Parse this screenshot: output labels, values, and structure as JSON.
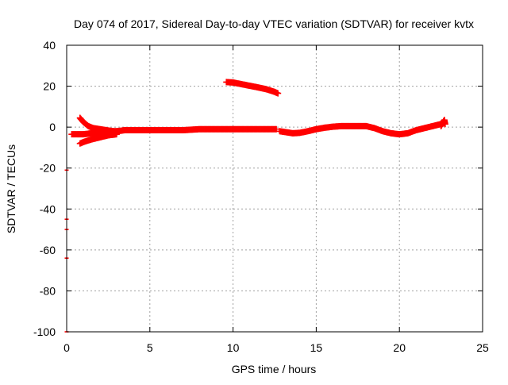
{
  "chart_data": {
    "type": "scatter",
    "title": "Day 074 of 2017, Sidereal Day-to-day VTEC variation (SDTVAR) for receiver kvtx",
    "xlabel": "GPS time / hours",
    "ylabel": "SDTVAR / TECUs",
    "xlim": [
      0,
      25
    ],
    "ylim": [
      -100,
      40
    ],
    "xticks": [
      "0",
      "5",
      "10",
      "15",
      "20",
      "25"
    ],
    "yticks": [
      "-100",
      "-80",
      "-60",
      "-40",
      "-20",
      "0",
      "20",
      "40"
    ],
    "grid": true,
    "marker": "+",
    "series_color": "#ff0000",
    "segments": [
      {
        "x": [
          0.3,
          0.6,
          1.0,
          1.5,
          2.0,
          2.5,
          3.0,
          3.5,
          4.0,
          5.0,
          6.0,
          7.0,
          8.0,
          9.0,
          10.0,
          11.0,
          12.0,
          12.6
        ],
        "y": [
          -3.5,
          -3.5,
          -3.5,
          -3.0,
          -2.5,
          -2.0,
          -2.0,
          -1.5,
          -1.5,
          -1.5,
          -1.5,
          -1.5,
          -1.0,
          -1.0,
          -1.0,
          -1.0,
          -1.0,
          -1.0
        ]
      },
      {
        "x": [
          0.8,
          1.0,
          1.3,
          1.6,
          2.0,
          2.4,
          2.8
        ],
        "y": [
          4.5,
          2.5,
          0.5,
          -0.5,
          -1.0,
          -1.5,
          -2.0
        ]
      },
      {
        "x": [
          0.8,
          1.1,
          1.5,
          2.0,
          2.5,
          3.0
        ],
        "y": [
          -8.0,
          -7.0,
          -6.0,
          -5.0,
          -4.0,
          -3.5
        ]
      },
      {
        "x": [
          9.6,
          10.0,
          10.5,
          11.0,
          11.5,
          12.0,
          12.5,
          12.7
        ],
        "y": [
          22.0,
          21.8,
          21.0,
          20.2,
          19.4,
          18.5,
          17.2,
          16.5
        ]
      },
      {
        "x": [
          12.8,
          13.2,
          13.6,
          14.0,
          14.5,
          15.0,
          15.5,
          16.0,
          16.5,
          17.0,
          17.5,
          18.0,
          18.5,
          19.0,
          19.5,
          20.0,
          20.5,
          21.0,
          21.5,
          22.0,
          22.5,
          22.7
        ],
        "y": [
          -2.0,
          -2.5,
          -3.0,
          -2.8,
          -2.0,
          -1.0,
          -0.3,
          0.2,
          0.5,
          0.5,
          0.5,
          0.5,
          -0.5,
          -2.0,
          -3.0,
          -3.5,
          -3.0,
          -1.5,
          -0.5,
          0.5,
          1.5,
          2.5
        ]
      },
      {
        "x": [
          22.5,
          22.6,
          22.7,
          22.75
        ],
        "y": [
          0.5,
          2.0,
          3.5,
          1.5
        ]
      },
      {
        "x": [
          0.0,
          0.0,
          0.0,
          0.0,
          0.0
        ],
        "y": [
          -21.0,
          -45.0,
          -50.0,
          -64.0,
          -100.0
        ]
      }
    ]
  }
}
